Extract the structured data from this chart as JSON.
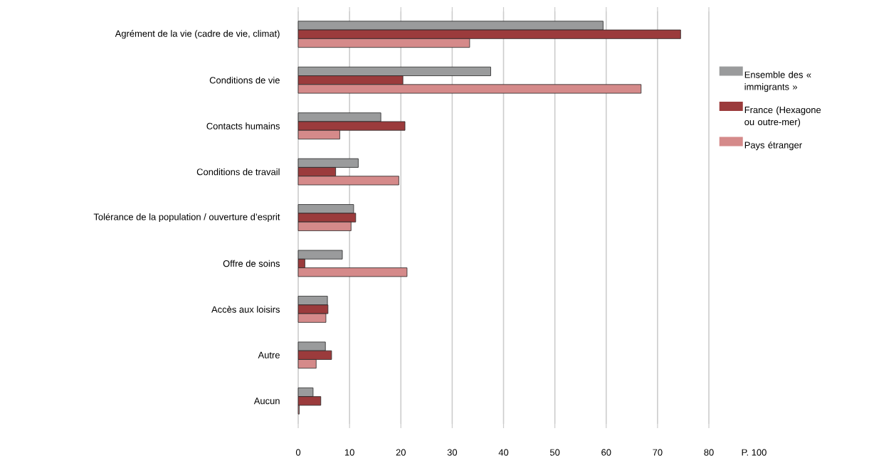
{
  "chart_data": {
    "type": "bar",
    "orientation": "horizontal",
    "categories": [
      "Agrément de la vie (cadre de vie, climat)",
      "Conditions de vie",
      "Contacts humains",
      "Conditions de travail",
      "Tolérance de la population / ouverture d’esprit",
      "Offre de soins",
      "Accès aux loisirs",
      "Autre",
      "Aucun"
    ],
    "series": [
      {
        "name": "Ensemble des « immigrants »",
        "color": "#9a9b9c",
        "values": [
          59.4,
          37.5,
          16.1,
          11.7,
          10.8,
          8.6,
          5.7,
          5.3,
          2.9
        ]
      },
      {
        "name": "France (Hexagone ou outre-mer)",
        "color": "#9b3b3c",
        "values": [
          74.5,
          20.4,
          20.8,
          7.3,
          11.2,
          1.3,
          5.8,
          6.5,
          4.4
        ]
      },
      {
        "name": "Pays étranger",
        "color": "#d58a8a",
        "values": [
          33.4,
          66.8,
          8.1,
          19.6,
          10.3,
          21.2,
          5.4,
          3.5,
          0.2
        ]
      }
    ],
    "xlim": [
      0,
      80
    ],
    "xticks": [
      0,
      10,
      20,
      30,
      40,
      50,
      60,
      70,
      80
    ],
    "xlabel": "P. 100",
    "grid": "x",
    "legend": "right"
  }
}
